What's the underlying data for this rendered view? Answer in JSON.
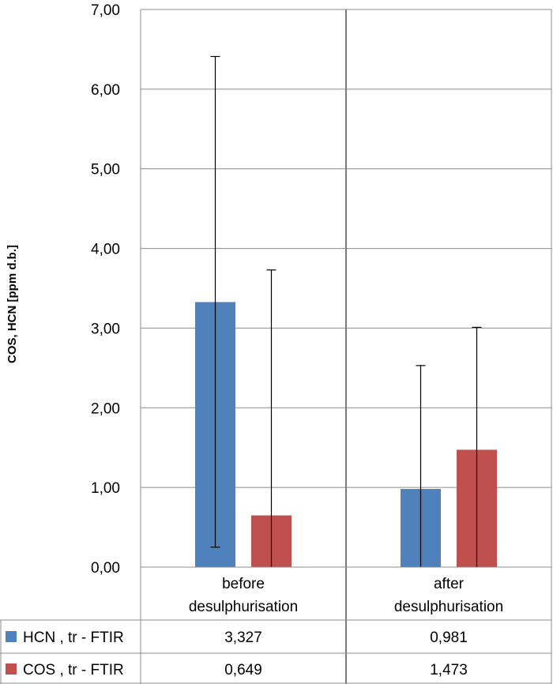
{
  "chart_data": {
    "type": "bar",
    "title": "",
    "xlabel": "",
    "ylabel": "COS, HCN [ppm d.b.]",
    "ylim": [
      0,
      7
    ],
    "yticks": [
      "0,00",
      "1,00",
      "2,00",
      "3,00",
      "4,00",
      "5,00",
      "6,00",
      "7,00"
    ],
    "grid": true,
    "legend": "data-table",
    "categories": [
      "before desulphurisation",
      "after desulphurisation"
    ],
    "category_lines": [
      [
        "before",
        "desulphurisation"
      ],
      [
        "after",
        "desulphurisation"
      ]
    ],
    "series": [
      {
        "name": "HCN , tr - FTIR",
        "color": "#4f81bd",
        "values": [
          3.327,
          0.981
        ],
        "labels": [
          "3,327",
          "0,981"
        ],
        "error_low": [
          0.25,
          0.0
        ],
        "error_high": [
          6.41,
          2.53
        ]
      },
      {
        "name": "COS , tr - FTIR",
        "color": "#c0504d",
        "values": [
          0.649,
          1.473
        ],
        "labels": [
          "0,649",
          "1,473"
        ],
        "error_low": [
          0.0,
          0.0
        ],
        "error_high": [
          3.73,
          3.01
        ]
      }
    ]
  }
}
